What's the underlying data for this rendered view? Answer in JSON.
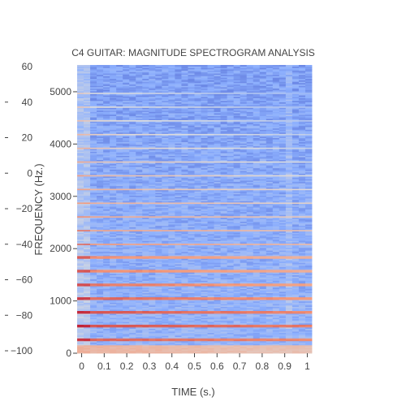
{
  "chart_data": {
    "type": "heatmap",
    "title": "C4 GUITAR: MAGNITUDE SPECTROGRAM ANALYSIS",
    "xlabel": "TIME (s.)",
    "ylabel": "FREQUENCY (Hz.)",
    "xlim": [
      -0.02,
      1.02
    ],
    "ylim": [
      0,
      5512
    ],
    "x_ticks": [
      {
        "value": 0,
        "label": "0"
      },
      {
        "value": 0.1,
        "label": "0.1"
      },
      {
        "value": 0.2,
        "label": "0.2"
      },
      {
        "value": 0.3,
        "label": "0.3"
      },
      {
        "value": 0.4,
        "label": "0.4"
      },
      {
        "value": 0.5,
        "label": "0.5"
      },
      {
        "value": 0.6,
        "label": "0.6"
      },
      {
        "value": 0.7,
        "label": "0.7"
      },
      {
        "value": 0.8,
        "label": "0.8"
      },
      {
        "value": 0.9,
        "label": "0.9"
      },
      {
        "value": 1,
        "label": "1"
      }
    ],
    "y_ticks": [
      {
        "value": 0,
        "label": "0"
      },
      {
        "value": 1000,
        "label": "1000"
      },
      {
        "value": 2000,
        "label": "2000"
      },
      {
        "value": 3000,
        "label": "3000"
      },
      {
        "value": 4000,
        "label": "4000"
      },
      {
        "value": 5000,
        "label": "5000"
      }
    ],
    "colorbar": {
      "range": [
        -100,
        60
      ],
      "ticks": [
        {
          "value": 60,
          "label": "60"
        },
        {
          "value": 40,
          "label": "40"
        },
        {
          "value": 20,
          "label": "20"
        },
        {
          "value": 0,
          "label": "0"
        },
        {
          "value": -20,
          "label": "−20"
        },
        {
          "value": -40,
          "label": "−40"
        },
        {
          "value": -60,
          "label": "−60"
        },
        {
          "value": -80,
          "label": "−80"
        },
        {
          "value": -100,
          "label": "−100"
        }
      ],
      "colorscale": [
        "#3a4cc0",
        "#8db0fe",
        "#dddddd",
        "#f49a7b",
        "#b40426"
      ]
    },
    "fundamental_hz": 261.6,
    "harmonic_levels_db": [
      35,
      40,
      38,
      34,
      30,
      26,
      24,
      20,
      16,
      12,
      8,
      5,
      2,
      -2,
      -6,
      -10,
      -14,
      -18,
      -22
    ],
    "noise_floor_db": -55,
    "grid": false
  }
}
